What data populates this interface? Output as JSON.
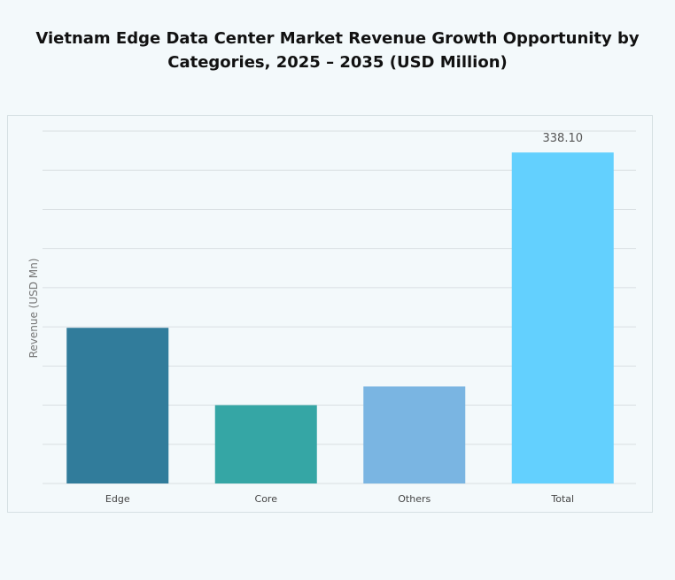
{
  "chart_data": {
    "type": "bar",
    "title_line1": "Vietnam Edge Data Center Market Revenue Growth Opportunity by",
    "title_line2": "Categories, 2025 – 2035 (USD Million)",
    "ylabel": "Revenue (USD Mn)",
    "xlabel": "",
    "categories": [
      "Edge",
      "Core",
      "Others",
      "Total"
    ],
    "values": [
      159,
      80,
      99.1,
      338.1
    ],
    "data_labels": [
      "",
      "",
      "",
      "338.10"
    ],
    "colors": [
      "#317c9b",
      "#35a6a5",
      "#7ab5e2",
      "#63d0fe"
    ],
    "ylim": [
      0,
      360
    ],
    "grid_step": 40,
    "grid": true,
    "legend": "none"
  }
}
